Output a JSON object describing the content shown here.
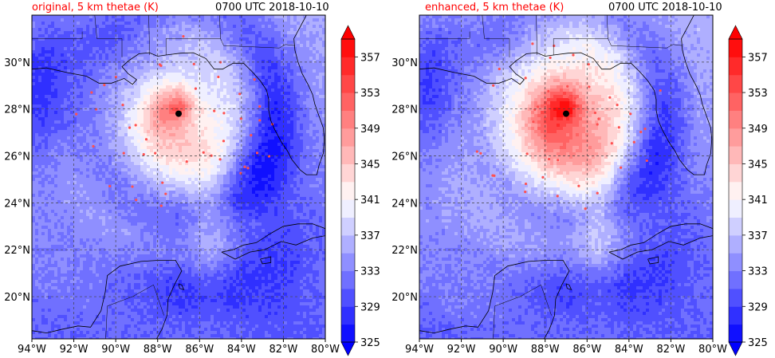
{
  "panels": [
    {
      "id": "original",
      "title": "original, 5 km thetae (K)",
      "time": "0700 UTC 2018-10-10",
      "variant": "original"
    },
    {
      "id": "enhanced",
      "title": "enhanced, 5 km thetae (K)",
      "time": "0700 UTC 2018-10-10",
      "variant": "enhanced"
    }
  ],
  "lon_ticks": [
    "94°W",
    "92°W",
    "90°W",
    "88°W",
    "86°W",
    "84°W",
    "82°W",
    "80°W"
  ],
  "lat_ticks": [
    "20°N",
    "22°N",
    "24°N",
    "26°N",
    "28°N",
    "30°N"
  ],
  "lon_range": [
    -94,
    -80
  ],
  "lat_range": [
    18.2,
    32
  ],
  "colorbar": {
    "min": 325,
    "max": 359,
    "step": 2,
    "tick_labels": [
      "325",
      "329",
      "333",
      "337",
      "341",
      "345",
      "349",
      "353",
      "357"
    ],
    "extend": "both",
    "low_color": "#0000ff",
    "mid_color": "#ffffff",
    "high_color": "#ff0000"
  },
  "storm_center": {
    "lon": -87.0,
    "lat": 27.8
  },
  "colors": {
    "title_red": "#ff0000",
    "text": "#000000",
    "grid": "#555555"
  }
}
